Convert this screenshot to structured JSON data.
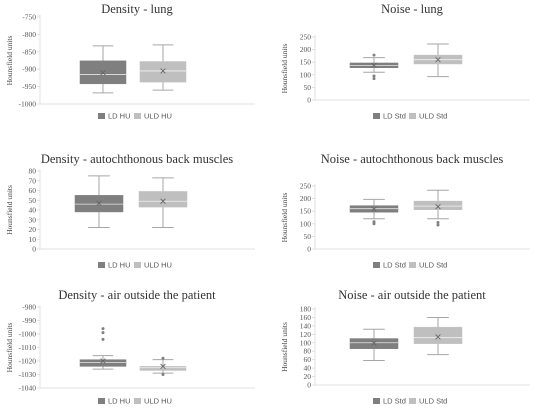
{
  "colors": {
    "ld": "#7f7f7f",
    "uld": "#bfbfbf",
    "whisker": "#a6a6a6",
    "axis": "#d9d9d9",
    "mean": "#666666",
    "outlier": "#7f7f7f"
  },
  "chart_data": [
    {
      "type": "box",
      "title": "Density - lung",
      "ylabel": "Hounsfield units",
      "ylim": [
        -1000,
        -750
      ],
      "yticks": [
        -1000,
        -950,
        -900,
        -850,
        -800,
        -750
      ],
      "grid": false,
      "legend_position": "bottom",
      "series": [
        {
          "name": "LD HU",
          "whisker_low": -968,
          "q1": -942,
          "median": -915,
          "q3": -876,
          "whisker_high": -833,
          "mean": -910,
          "outliers": []
        },
        {
          "name": "ULD HU",
          "whisker_low": -960,
          "q1": -937,
          "median": -905,
          "q3": -878,
          "whisker_high": -830,
          "mean": -905,
          "outliers": []
        }
      ]
    },
    {
      "type": "box",
      "title": "Noise - lung",
      "ylabel": "Hounsfield units",
      "ylim": [
        0,
        250
      ],
      "yticks": [
        0,
        50,
        100,
        150,
        200,
        250
      ],
      "grid": false,
      "legend_position": "bottom",
      "series": [
        {
          "name": "LD Std",
          "whisker_low": 110,
          "q1": 128,
          "median": 137,
          "q3": 147,
          "whisker_high": 168,
          "mean": 138,
          "outliers": [
            178,
            95,
            85
          ]
        },
        {
          "name": "ULD Std",
          "whisker_low": 93,
          "q1": 143,
          "median": 160,
          "q3": 178,
          "whisker_high": 222,
          "mean": 160,
          "outliers": []
        }
      ]
    },
    {
      "type": "box",
      "title": "Density - autochthonous back muscles",
      "ylabel": "Hounsfield units",
      "ylim": [
        0,
        80
      ],
      "yticks": [
        0,
        10,
        20,
        30,
        40,
        50,
        60,
        70,
        80
      ],
      "grid": false,
      "legend_position": "bottom",
      "series": [
        {
          "name": "LD HU",
          "whisker_low": 22,
          "q1": 38,
          "median": 46,
          "q3": 55,
          "whisker_high": 75,
          "mean": 47,
          "outliers": []
        },
        {
          "name": "ULD HU",
          "whisker_low": 22,
          "q1": 43,
          "median": 49,
          "q3": 59,
          "whisker_high": 73,
          "mean": 49,
          "outliers": []
        }
      ]
    },
    {
      "type": "box",
      "title": "Noise - autochthonous back muscles",
      "ylabel": "Hounsfield units",
      "ylim": [
        0,
        250
      ],
      "yticks": [
        0,
        50,
        100,
        150,
        200,
        250
      ],
      "grid": false,
      "legend_position": "bottom",
      "series": [
        {
          "name": "LD Std",
          "whisker_low": 120,
          "q1": 146,
          "median": 160,
          "q3": 172,
          "whisker_high": 197,
          "mean": 158,
          "outliers": [
            108,
            100
          ]
        },
        {
          "name": "ULD Std",
          "whisker_low": 120,
          "q1": 156,
          "median": 170,
          "q3": 190,
          "whisker_high": 233,
          "mean": 168,
          "outliers": [
            105,
            95
          ]
        }
      ]
    },
    {
      "type": "box",
      "title": "Density - air outside the patient",
      "ylabel": "Hounsfield units",
      "ylim": [
        -1040,
        -980
      ],
      "yticks": [
        -1040,
        -1030,
        -1020,
        -1010,
        -1000,
        -990,
        -980
      ],
      "grid": false,
      "legend_position": "bottom",
      "series": [
        {
          "name": "LD HU",
          "whisker_low": -1026,
          "q1": -1024,
          "median": -1021,
          "q3": -1019,
          "whisker_high": -1016,
          "mean": -1020,
          "outliers": [
            -996,
            -999,
            -1004
          ]
        },
        {
          "name": "ULD HU",
          "whisker_low": -1029,
          "q1": -1027,
          "median": -1025,
          "q3": -1024,
          "whisker_high": -1019,
          "mean": -1024,
          "outliers": [
            -1018,
            -1030
          ]
        }
      ]
    },
    {
      "type": "box",
      "title": "Noise - air outside the patient",
      "ylabel": "Hounsfield units",
      "ylim": [
        0,
        180
      ],
      "yticks": [
        0,
        20,
        40,
        60,
        80,
        100,
        120,
        140,
        160,
        180
      ],
      "grid": false,
      "legend_position": "bottom",
      "series": [
        {
          "name": "LD Std",
          "whisker_low": 58,
          "q1": 86,
          "median": 100,
          "q3": 110,
          "whisker_high": 132,
          "mean": 99,
          "outliers": []
        },
        {
          "name": "ULD Std",
          "whisker_low": 72,
          "q1": 98,
          "median": 112,
          "q3": 137,
          "whisker_high": 160,
          "mean": 114,
          "outliers": []
        }
      ]
    }
  ]
}
